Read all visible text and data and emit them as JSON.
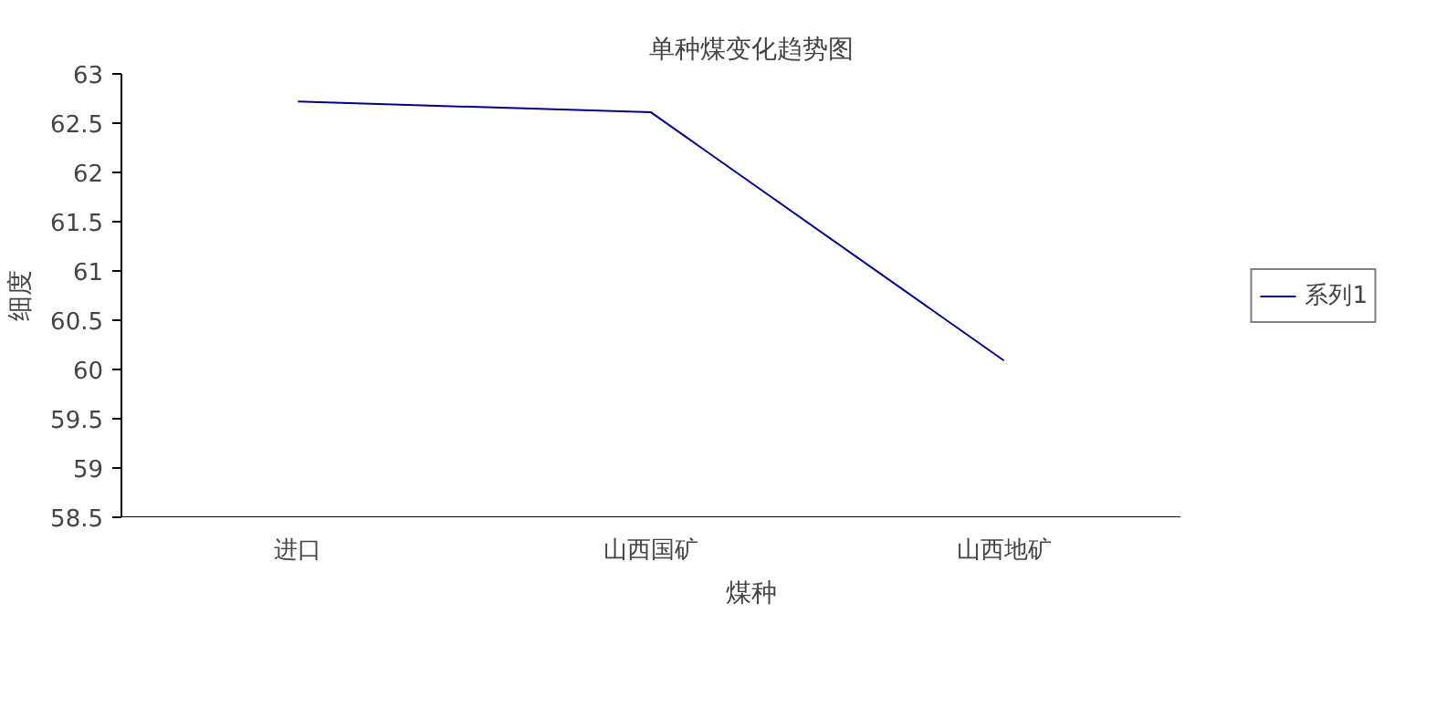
{
  "chart_data": {
    "type": "line",
    "title": "单种煤变化趋势图",
    "xlabel": "煤种",
    "ylabel": "细度",
    "categories": [
      "进口",
      "山西国矿",
      "山西地矿"
    ],
    "series": [
      {
        "name": "系列1",
        "color": "#000080",
        "values": [
          62.72,
          62.61,
          60.09
        ]
      }
    ],
    "ylim": [
      58.5,
      63
    ],
    "yticks": [
      58.5,
      59,
      59.5,
      60,
      60.5,
      61,
      61.5,
      62,
      62.5,
      63
    ],
    "grid": false,
    "legend": "right",
    "marker": "none",
    "line_style": "solid"
  }
}
